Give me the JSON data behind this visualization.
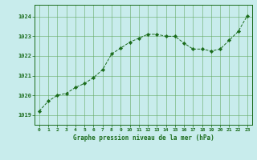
{
  "x": [
    0,
    1,
    2,
    3,
    4,
    5,
    6,
    7,
    8,
    9,
    10,
    11,
    12,
    13,
    14,
    15,
    16,
    17,
    18,
    19,
    20,
    21,
    22,
    23
  ],
  "y": [
    1019.2,
    1019.7,
    1020.0,
    1020.1,
    1020.4,
    1020.6,
    1020.9,
    1021.3,
    1022.1,
    1022.4,
    1022.7,
    1022.9,
    1023.1,
    1023.1,
    1023.0,
    1023.0,
    1022.65,
    1022.35,
    1022.35,
    1022.25,
    1022.35,
    1022.8,
    1023.25,
    1024.05
  ],
  "line_color": "#1a6b1a",
  "marker_color": "#1a6b1a",
  "bg_color": "#c8ecec",
  "grid_color": "#66aa66",
  "xlabel": "Graphe pression niveau de la mer (hPa)",
  "xlabel_color": "#1a6b1a",
  "ylabel_ticks": [
    1019,
    1020,
    1021,
    1022,
    1023,
    1024
  ],
  "xtick_labels": [
    "0",
    "1",
    "2",
    "3",
    "4",
    "5",
    "6",
    "7",
    "8",
    "9",
    "10",
    "11",
    "12",
    "13",
    "14",
    "15",
    "16",
    "17",
    "18",
    "19",
    "20",
    "21",
    "22",
    "23"
  ],
  "ylim": [
    1018.5,
    1024.6
  ],
  "xlim": [
    -0.5,
    23.5
  ]
}
